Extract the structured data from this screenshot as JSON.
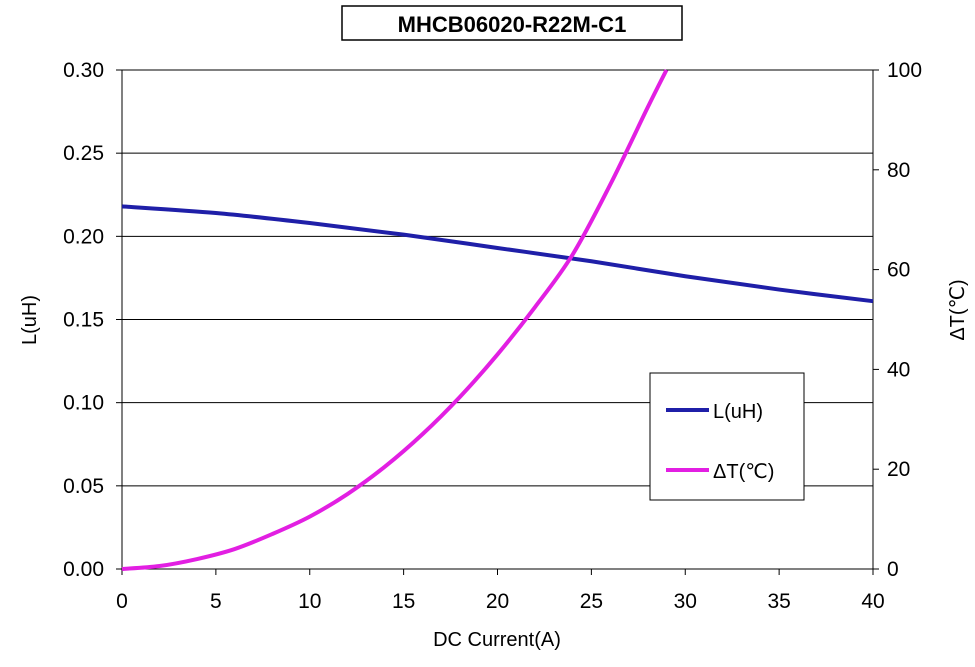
{
  "chart_data": {
    "type": "line",
    "title": "MHCB06020-R22M-C1",
    "xlabel": "DC Current(A)",
    "ylabel": "L(uH)",
    "y2label": "ΔT(℃)",
    "xlim": [
      0,
      40
    ],
    "ylim": [
      0,
      0.3
    ],
    "y2lim": [
      0,
      100
    ],
    "x_ticks": [
      "0",
      "5",
      "10",
      "15",
      "20",
      "25",
      "30",
      "35",
      "40"
    ],
    "y_ticks": [
      "0.00",
      "0.05",
      "0.10",
      "0.15",
      "0.20",
      "0.25",
      "0.30"
    ],
    "y2_ticks": [
      "0",
      "20",
      "40",
      "60",
      "80",
      "100"
    ],
    "grid": "horizontal",
    "legend_position": "lower-right",
    "series": [
      {
        "name": "L(uH)",
        "axis": "left",
        "color": "#1f1fa8",
        "x": [
          0,
          5,
          10,
          15,
          20,
          25,
          30,
          35,
          40
        ],
        "values": [
          0.218,
          0.214,
          0.208,
          0.201,
          0.193,
          0.185,
          0.176,
          0.168,
          0.161
        ]
      },
      {
        "name": "ΔT(℃)",
        "axis": "right",
        "color": "#e21fe2",
        "x": [
          0,
          2,
          4,
          6,
          8,
          10,
          12,
          14,
          16,
          18,
          20,
          22,
          24,
          26,
          28,
          29
        ],
        "values": [
          0,
          0.6,
          2,
          4,
          7,
          10.5,
          15,
          20.5,
          27,
          34.5,
          43,
          52.5,
          63,
          77,
          92.5,
          100
        ]
      }
    ]
  }
}
